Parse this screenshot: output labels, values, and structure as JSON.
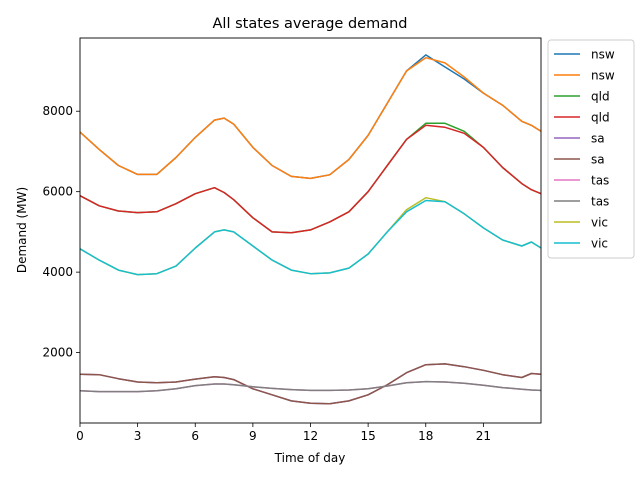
{
  "chart_data": {
    "type": "line",
    "title": "All states average demand",
    "xlabel": "Time of day",
    "ylabel": "Demand (MW)",
    "xlim": [
      0,
      24
    ],
    "ylim": [
      250,
      9820
    ],
    "xticks": [
      0,
      3,
      6,
      9,
      12,
      15,
      18,
      21
    ],
    "xtick_labels": [
      "0",
      "3",
      "6",
      "9",
      "12",
      "15",
      "18",
      "21"
    ],
    "yticks": [
      2000,
      4000,
      6000,
      8000
    ],
    "ytick_labels": [
      "2000",
      "4000",
      "6000",
      "8000"
    ],
    "grid": false,
    "legend_position": "outside-right",
    "x": [
      0,
      1,
      2,
      3,
      4,
      5,
      6,
      7,
      7.5,
      8,
      9,
      10,
      11,
      12,
      13,
      14,
      15,
      16,
      17,
      18,
      19,
      20,
      21,
      22,
      23,
      23.5,
      24
    ],
    "series": [
      {
        "name": "nsw",
        "color": "#1f77b4",
        "values": [
          7480,
          7050,
          6650,
          6430,
          6430,
          6850,
          7350,
          7780,
          7830,
          7680,
          7100,
          6650,
          6380,
          6330,
          6420,
          6800,
          7400,
          8200,
          9000,
          9400,
          9100,
          8800,
          8450,
          8150,
          7750,
          7650,
          7500
        ]
      },
      {
        "name": "nsw",
        "color": "#ff7f0e",
        "values": [
          7480,
          7050,
          6650,
          6430,
          6430,
          6850,
          7350,
          7780,
          7830,
          7680,
          7100,
          6650,
          6380,
          6330,
          6420,
          6800,
          7400,
          8200,
          9000,
          9330,
          9200,
          8850,
          8450,
          8150,
          7750,
          7650,
          7500
        ]
      },
      {
        "name": "qld",
        "color": "#2ca02c",
        "values": [
          5900,
          5650,
          5520,
          5480,
          5500,
          5700,
          5950,
          6100,
          5980,
          5800,
          5350,
          5000,
          4980,
          5050,
          5250,
          5500,
          6000,
          6650,
          7300,
          7700,
          7700,
          7500,
          7100,
          6600,
          6200,
          6050,
          5950
        ]
      },
      {
        "name": "qld",
        "color": "#d62728",
        "values": [
          5900,
          5650,
          5520,
          5480,
          5500,
          5700,
          5950,
          6100,
          5980,
          5800,
          5350,
          5000,
          4980,
          5050,
          5250,
          5500,
          6000,
          6650,
          7300,
          7650,
          7600,
          7450,
          7100,
          6600,
          6200,
          6050,
          5950
        ]
      },
      {
        "name": "sa",
        "color": "#9467bd",
        "values": [
          1460,
          1450,
          1350,
          1270,
          1250,
          1270,
          1340,
          1400,
          1380,
          1330,
          1100,
          950,
          800,
          740,
          730,
          800,
          950,
          1200,
          1500,
          1700,
          1720,
          1650,
          1560,
          1450,
          1380,
          1480,
          1460
        ]
      },
      {
        "name": "sa",
        "color": "#8c564b",
        "values": [
          1460,
          1450,
          1350,
          1270,
          1250,
          1270,
          1340,
          1400,
          1380,
          1330,
          1100,
          950,
          800,
          740,
          730,
          800,
          950,
          1200,
          1500,
          1700,
          1720,
          1650,
          1560,
          1450,
          1380,
          1480,
          1460
        ]
      },
      {
        "name": "tas",
        "color": "#e377c2",
        "values": [
          1050,
          1030,
          1030,
          1030,
          1050,
          1100,
          1180,
          1220,
          1220,
          1200,
          1150,
          1110,
          1080,
          1060,
          1060,
          1070,
          1100,
          1170,
          1250,
          1280,
          1270,
          1240,
          1190,
          1130,
          1090,
          1070,
          1060
        ]
      },
      {
        "name": "tas",
        "color": "#7f7f7f",
        "values": [
          1050,
          1030,
          1030,
          1030,
          1050,
          1100,
          1180,
          1220,
          1220,
          1200,
          1150,
          1110,
          1080,
          1060,
          1060,
          1070,
          1100,
          1170,
          1250,
          1280,
          1270,
          1240,
          1190,
          1130,
          1090,
          1070,
          1060
        ]
      },
      {
        "name": "vic",
        "color": "#bcbd22",
        "values": [
          4580,
          4300,
          4050,
          3940,
          3960,
          4150,
          4600,
          5000,
          5050,
          5000,
          4650,
          4300,
          4050,
          3960,
          3980,
          4100,
          4450,
          5000,
          5550,
          5850,
          5750,
          5450,
          5100,
          4800,
          4650,
          4750,
          4600
        ]
      },
      {
        "name": "vic",
        "color": "#17becf",
        "values": [
          4580,
          4300,
          4050,
          3940,
          3960,
          4150,
          4600,
          5000,
          5050,
          5000,
          4650,
          4300,
          4050,
          3960,
          3980,
          4100,
          4450,
          5000,
          5500,
          5780,
          5750,
          5450,
          5100,
          4800,
          4650,
          4750,
          4600
        ]
      }
    ]
  }
}
